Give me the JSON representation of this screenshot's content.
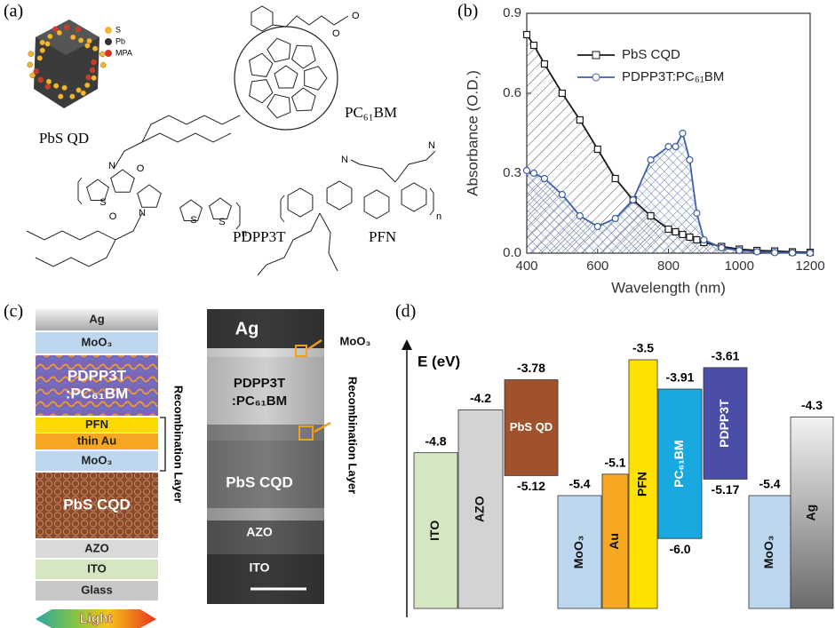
{
  "panel_a": {
    "panel_label": "(a)",
    "legend": [
      "S",
      "Pb",
      "MPA"
    ],
    "names": [
      "PbS QD",
      "PC₆₁BM",
      "PDPP3T",
      "PFN"
    ],
    "atoms": [
      "O",
      "O",
      "S",
      "N",
      "O",
      "O",
      "N",
      "S",
      "S",
      "n",
      "N",
      "N",
      "n"
    ]
  },
  "chart_data": [
    {
      "type": "line",
      "panel_label": "(b)",
      "x_label": "Wavelength (nm)",
      "y_label": "Absorbance (O.D.)",
      "x": [
        400,
        420,
        450,
        500,
        550,
        600,
        650,
        700,
        750,
        800,
        820,
        840,
        860,
        880,
        900,
        950,
        1000,
        1050,
        1100,
        1150,
        1200
      ],
      "series": [
        {
          "name": "PbS CQD",
          "color": "#1a1a1a",
          "marker": "square",
          "values": [
            0.82,
            0.78,
            0.71,
            0.6,
            0.5,
            0.39,
            0.28,
            0.2,
            0.14,
            0.09,
            0.08,
            0.07,
            0.06,
            0.05,
            0.04,
            0.025,
            0.015,
            0.01,
            0.008,
            0.005,
            0.003
          ]
        },
        {
          "name": "PDPP3T:PC₆₁BM",
          "color": "#3f5fa8",
          "marker": "circle",
          "values": [
            0.31,
            0.3,
            0.28,
            0.22,
            0.14,
            0.1,
            0.13,
            0.2,
            0.35,
            0.4,
            0.4,
            0.45,
            0.35,
            0.15,
            0.05,
            0.02,
            0.01,
            0.005,
            0.002,
            0.001,
            0
          ]
        }
      ],
      "xlim": [
        400,
        1200
      ],
      "ylim": [
        0,
        0.9
      ],
      "xticks": [
        400,
        600,
        800,
        1000,
        1200
      ],
      "yticks": [
        {
          "value": 0,
          "label": "0.0"
        },
        0.3,
        0.6,
        0.9
      ],
      "legend": "upper right"
    },
    {
      "type": "energy-level",
      "panel_label": "(d)",
      "axis_label": "E (eV)",
      "series": [
        {
          "name": "ITO",
          "color": "#d5e6c3",
          "values": [
            -4.8
          ]
        },
        {
          "name": "AZO",
          "color": "#d3d3d3",
          "values": [
            -4.2
          ]
        },
        {
          "name": "PbS QD",
          "color": "#a0522d",
          "values": [
            -3.78,
            -5.12
          ]
        },
        {
          "name": "MoO₃",
          "color": "#bdd7ee",
          "values": [
            -5.4
          ]
        },
        {
          "name": "Au",
          "color": "#f7a823",
          "values": [
            -5.1
          ]
        },
        {
          "name": "PFN",
          "color": "#ffe100",
          "values": [
            -3.5
          ]
        },
        {
          "name": "PC₆₁BM",
          "color": "#19a9e1",
          "values": [
            -3.91,
            -6.0
          ],
          "value_labels": [
            "-3.91",
            "-6.0"
          ]
        },
        {
          "name": "PDPP3T",
          "color": "#4a4ea6",
          "values": [
            -3.61,
            -5.17
          ]
        },
        {
          "name": "MoO₃",
          "color": "#bdd7ee",
          "values": [
            -5.4
          ]
        },
        {
          "name": "Ag",
          "color": "gradient",
          "values": [
            -4.3
          ]
        }
      ]
    }
  ],
  "panel_c": {
    "panel_label": "(c)",
    "layers": [
      {
        "lines": [
          "Ag"
        ],
        "color": "#d9d9d9"
      },
      {
        "lines": [
          "MoO₃"
        ],
        "color": "#bdd7ee"
      },
      {
        "lines": [
          "PDPP3T",
          ":PC₆₁BM"
        ],
        "color": "#8f6db0"
      },
      {
        "lines": [
          "PFN"
        ],
        "color": "#ffd800"
      },
      {
        "lines": [
          "thin Au"
        ],
        "color": "#f5a623"
      },
      {
        "lines": [
          "MoO₃"
        ],
        "color": "#bdd7ee"
      },
      {
        "lines": [
          "PbS CQD"
        ],
        "color": "#8b4a2b"
      },
      {
        "lines": [
          "AZO"
        ],
        "color": "#d9d9d9"
      },
      {
        "lines": [
          "ITO"
        ],
        "color": "#d5e6c3"
      },
      {
        "lines": [
          "Glass"
        ],
        "color": "#c8c8c8"
      }
    ],
    "recombination": "Recombination Layer",
    "light": "Light",
    "tem_labels": [
      "Ag",
      "MoO₃",
      "PDPP3T",
      ":PC₆₁BM",
      "PbS CQD",
      "AZO",
      "ITO"
    ]
  }
}
